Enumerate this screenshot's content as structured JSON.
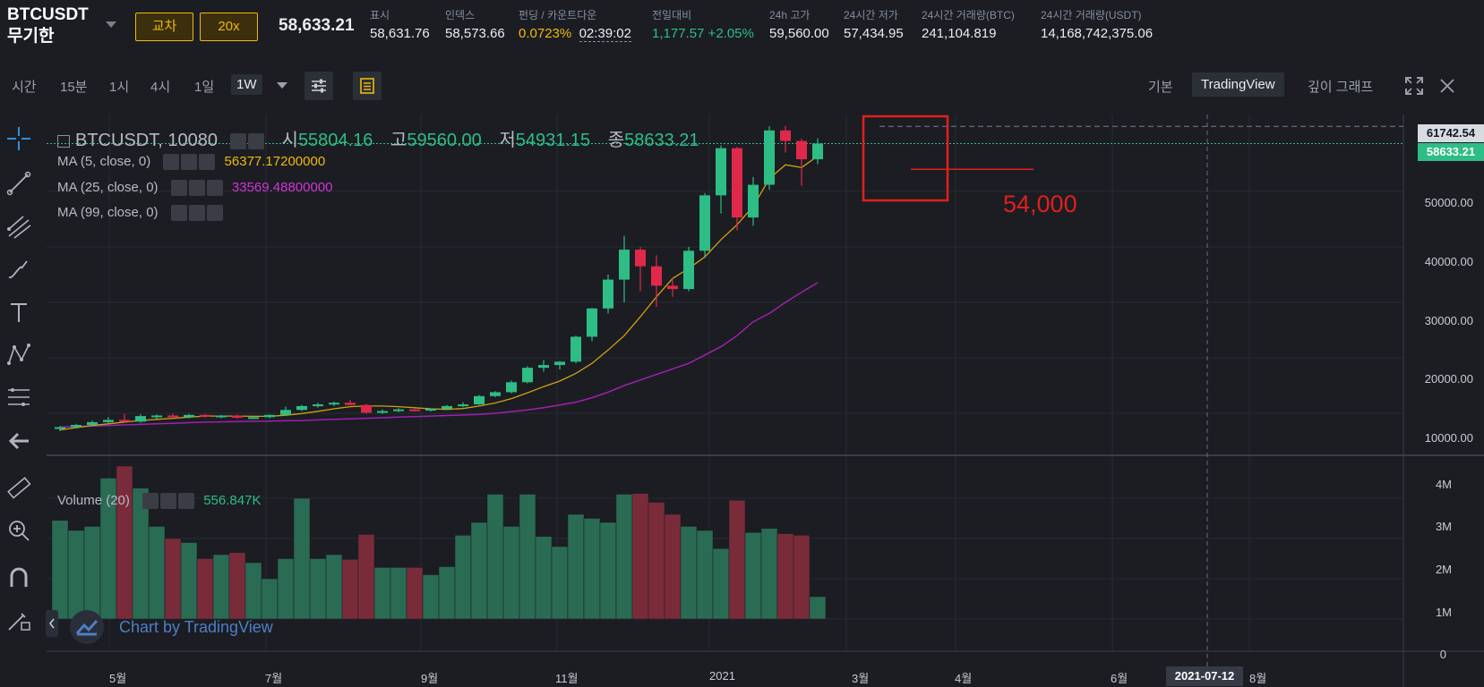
{
  "header": {
    "symbol_line1": "BTCUSDT",
    "symbol_line2": "무기한",
    "margin_mode": "교차",
    "leverage": "20x",
    "last_price": "58,633.21",
    "stats": [
      {
        "label": "표시",
        "value": "58,631.76"
      },
      {
        "label": "인덱스",
        "value": "58,573.66"
      },
      {
        "label": "펀딩 / 카운트다운",
        "value": "0.0723%",
        "value2": "02:39:02"
      },
      {
        "label": "전일대비",
        "value": "1,177.57 +2.05%"
      },
      {
        "label": "24h 고가",
        "value": "59,560.00"
      },
      {
        "label": "24시간 저가",
        "value": "57,434.95"
      },
      {
        "label": "24시간 거래량(BTC)",
        "value": "241,104.819"
      },
      {
        "label": "24시간 거래량(USDT)",
        "value": "14,168,742,375.06"
      }
    ]
  },
  "toolbar": {
    "time_label": "시간",
    "intervals": [
      "15분",
      "1시",
      "4시",
      "1일",
      "1W"
    ],
    "views": [
      "기본",
      "TradingView",
      "깊이 그래프"
    ]
  },
  "legend": {
    "title": "BTCUSDT, 10080",
    "o_label": "시",
    "o_value": "55804.16",
    "h_label": "고",
    "h_value": "59560.00",
    "l_label": "저",
    "l_value": "54931.15",
    "c_label": "종",
    "c_value": "58633.21",
    "ma5_label": "MA (5, close, 0)",
    "ma5_value": "56377.17200000",
    "ma25_label": "MA (25, close, 0)",
    "ma25_value": "33569.48800000",
    "ma99_label": "MA (99, close, 0)",
    "vol_label": "Volume (20)",
    "vol_value": "556.847K"
  },
  "price_tags": {
    "high": "61742.54",
    "last": "58633.21"
  },
  "annotation": "54,000",
  "watermark": "Chart by TradingView",
  "date_tag": "2021-07-12",
  "colors": {
    "up": "#2ebd85",
    "down": "#e0294a",
    "ma5": "#f0b90b",
    "ma25": "#a020b0",
    "accent": "#f0b90b",
    "annotation": "#e0201c"
  },
  "chart_data": {
    "type": "candlestick",
    "interval": "1W",
    "price_ticks": [
      "10000.00",
      "20000.00",
      "30000.00",
      "40000.00",
      "50000.00"
    ],
    "volume_ticks": [
      "0",
      "1M",
      "2M",
      "3M",
      "4M"
    ],
    "x_ticks": [
      "5월",
      "7월",
      "9월",
      "11월",
      "2021",
      "3월",
      "4월",
      "6월",
      "8월"
    ],
    "ylim": [
      4000,
      64000
    ],
    "candles": [
      [
        7200,
        7700,
        6800,
        7500
      ],
      [
        7500,
        8100,
        7300,
        7900
      ],
      [
        7900,
        8700,
        7600,
        8400
      ],
      [
        8400,
        9300,
        8100,
        8800
      ],
      [
        8800,
        9900,
        8600,
        8500
      ],
      [
        8500,
        9800,
        8300,
        9500
      ],
      [
        9500,
        9800,
        9000,
        9600
      ],
      [
        9600,
        10000,
        9300,
        9300
      ],
      [
        9300,
        9900,
        9100,
        9700
      ],
      [
        9700,
        9900,
        9200,
        9400
      ],
      [
        9400,
        9700,
        9100,
        9600
      ],
      [
        9600,
        9800,
        9000,
        9200
      ],
      [
        9200,
        9500,
        9000,
        9300
      ],
      [
        9300,
        9800,
        9100,
        9700
      ],
      [
        9700,
        11200,
        9600,
        10600
      ],
      [
        10600,
        11500,
        10400,
        11300
      ],
      [
        11300,
        11900,
        11000,
        11600
      ],
      [
        11600,
        12100,
        11300,
        11900
      ],
      [
        11900,
        12400,
        11400,
        11500
      ],
      [
        11500,
        11700,
        9900,
        10100
      ],
      [
        10100,
        10700,
        9900,
        10400
      ],
      [
        10400,
        10900,
        10200,
        10700
      ],
      [
        10700,
        10800,
        10300,
        10500
      ],
      [
        10500,
        10900,
        10300,
        10800
      ],
      [
        10800,
        11500,
        10600,
        11300
      ],
      [
        11300,
        12000,
        11100,
        11600
      ],
      [
        11600,
        13300,
        11500,
        13100
      ],
      [
        13100,
        14000,
        12900,
        13800
      ],
      [
        13800,
        15900,
        13600,
        15600
      ],
      [
        15600,
        18500,
        15400,
        18200
      ],
      [
        18200,
        19600,
        17500,
        18700
      ],
      [
        18700,
        19400,
        17900,
        19300
      ],
      [
        19300,
        24000,
        19000,
        23800
      ],
      [
        23800,
        29000,
        23000,
        28900
      ],
      [
        28900,
        35000,
        28000,
        34100
      ],
      [
        34100,
        42000,
        30000,
        39500
      ],
      [
        39500,
        40000,
        32000,
        36500
      ],
      [
        36500,
        38500,
        29200,
        33000
      ],
      [
        33000,
        34500,
        31000,
        32400
      ],
      [
        32400,
        40000,
        32000,
        39300
      ],
      [
        39300,
        49700,
        38000,
        49300
      ],
      [
        49300,
        58300,
        46000,
        57800
      ],
      [
        57800,
        58000,
        43000,
        45300
      ],
      [
        45300,
        52600,
        43800,
        51200
      ],
      [
        51200,
        61742,
        50300,
        61000
      ],
      [
        61000,
        61800,
        57000,
        59100
      ],
      [
        59100,
        59500,
        51000,
        55800
      ],
      [
        55800,
        59560,
        54931,
        58633
      ]
    ],
    "volumes": [
      2.45,
      2.2,
      2.3,
      3.5,
      3.8,
      3.25,
      2.3,
      2.0,
      1.9,
      1.5,
      1.6,
      1.65,
      1.4,
      1.0,
      1.5,
      3.0,
      1.5,
      1.6,
      1.48,
      2.1,
      1.28,
      1.28,
      1.28,
      1.1,
      1.3,
      2.08,
      2.4,
      3.1,
      2.3,
      3.1,
      2.05,
      1.8,
      2.6,
      2.5,
      2.4,
      3.1,
      3.12,
      2.9,
      2.6,
      2.3,
      2.2,
      1.75,
      2.95,
      2.15,
      2.25,
      2.12,
      2.08,
      0.556
    ],
    "ma5": [
      7000,
      7400,
      7800,
      8100,
      8400,
      8700,
      8900,
      9100,
      9300,
      9500,
      9500,
      9500,
      9450,
      9450,
      9650,
      9950,
      10350,
      10800,
      11200,
      11300,
      11300,
      11200,
      11000,
      10800,
      10700,
      10850,
      11300,
      11850,
      12650,
      13700,
      14800,
      15800,
      17200,
      19000,
      21400,
      24000,
      27400,
      31000,
      34300,
      36100,
      38200,
      41300,
      44000,
      47300,
      52300,
      54800,
      54300,
      56377
    ],
    "ma25": [
      7500,
      7600,
      7700,
      7800,
      7900,
      8000,
      8100,
      8200,
      8300,
      8400,
      8450,
      8500,
      8550,
      8600,
      8650,
      8700,
      8800,
      8900,
      9000,
      9100,
      9200,
      9300,
      9400,
      9500,
      9600,
      9700,
      9800,
      10000,
      10300,
      10600,
      11000,
      11500,
      12000,
      12800,
      13800,
      15000,
      16000,
      17000,
      18000,
      19000,
      20500,
      22000,
      24000,
      26500,
      28000,
      30000,
      31800,
      33569
    ]
  }
}
